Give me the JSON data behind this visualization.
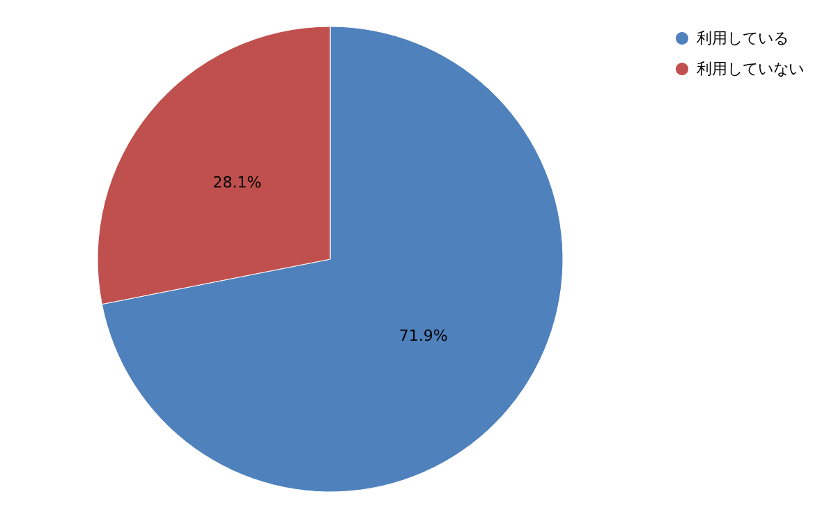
{
  "chart_data": {
    "type": "pie",
    "categories": [
      "利用している",
      "利用していない"
    ],
    "values": [
      71.9,
      28.1
    ],
    "colors": [
      "#4f81bd",
      "#c0504d"
    ],
    "value_labels": [
      "71.9%",
      "28.1%"
    ],
    "legend": "top right"
  }
}
